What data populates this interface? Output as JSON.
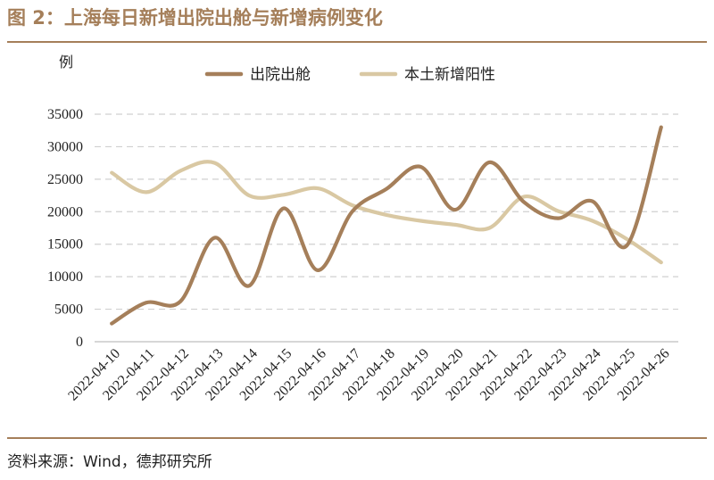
{
  "header": {
    "title": "图 2：上海每日新增出院出舱与新增病例变化"
  },
  "footer": {
    "source": "资料来源：Wind，德邦研究所"
  },
  "colors": {
    "accent": "#a57f5a",
    "series_dark": "#a57f5a",
    "series_light": "#d9c8a3",
    "grid": "#d0d0d0"
  },
  "chart_data": {
    "type": "line",
    "title": "",
    "ylabel": "例",
    "xlabel": "",
    "ylim": [
      0,
      35000
    ],
    "yticks": [
      0,
      5000,
      10000,
      15000,
      20000,
      25000,
      30000,
      35000
    ],
    "grid": "horizontal-dashed",
    "legend_position": "top",
    "categories": [
      "2022-04-10",
      "2022-04-11",
      "2022-04-12",
      "2022-04-13",
      "2022-04-14",
      "2022-04-15",
      "2022-04-16",
      "2022-04-17",
      "2022-04-18",
      "2022-04-19",
      "2022-04-20",
      "2022-04-21",
      "2022-04-22",
      "2022-04-23",
      "2022-04-24",
      "2022-04-25",
      "2022-04-26"
    ],
    "series": [
      {
        "name": "出院出舱",
        "color": "#a57f5a",
        "values": [
          2800,
          6000,
          6200,
          16000,
          8600,
          20500,
          11000,
          20000,
          23500,
          26900,
          20300,
          27600,
          21500,
          19000,
          21600,
          14800,
          33000
        ]
      },
      {
        "name": "本土新增阳性",
        "color": "#d9c8a3",
        "values": [
          26000,
          23000,
          26300,
          27500,
          22500,
          22600,
          23600,
          21000,
          19500,
          18600,
          18000,
          17500,
          22300,
          20100,
          18600,
          15800,
          12200
        ]
      }
    ]
  }
}
